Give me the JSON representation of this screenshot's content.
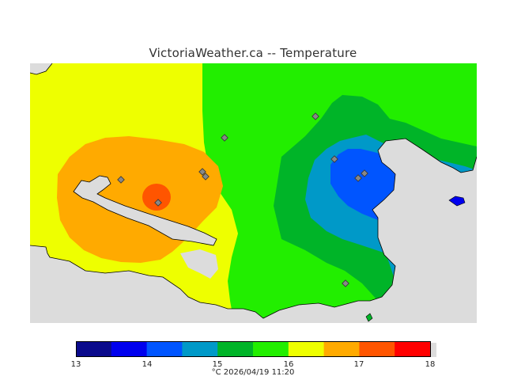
{
  "title": "VictoriaWeather.ca -- Temperature",
  "caption": "°C  2026/04/19 11:20",
  "colorbar": {
    "ticks": [
      "13",
      "14",
      "15",
      "16",
      "17",
      "18"
    ],
    "colors": [
      "#0a0a8c",
      "#0000ee",
      "#0055ff",
      "#0099c8",
      "#00b428",
      "#22ee00",
      "#eeff00",
      "#ffaa00",
      "#ff5500",
      "#ff0000"
    ]
  },
  "map": {
    "background": "#dcdcdc",
    "station_count": 10
  }
}
